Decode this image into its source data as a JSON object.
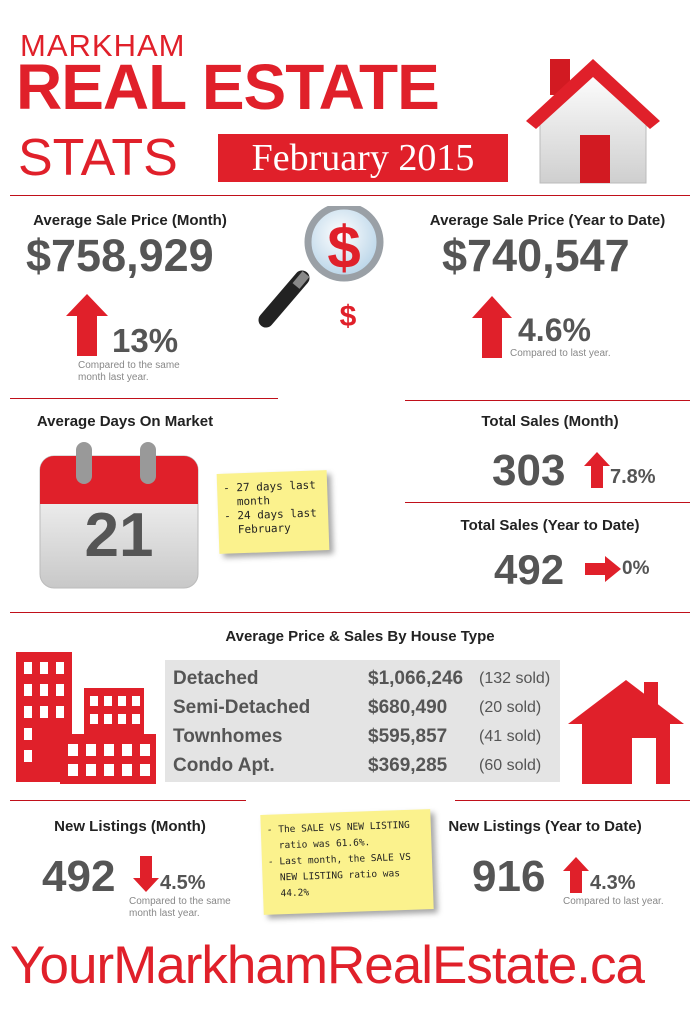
{
  "header": {
    "city": "MARKHAM",
    "title": "REAL ESTATE",
    "stats": "STATS",
    "date": "February 2015"
  },
  "avg_price_month": {
    "label": "Average Sale Price (Month)",
    "value": "$758,929",
    "change": "13%",
    "direction": "up",
    "compare": [
      "Compared to the same",
      "month last year."
    ]
  },
  "avg_price_ytd": {
    "label": "Average Sale Price (Year to Date)",
    "value": "$740,547",
    "change": "4.6%",
    "direction": "up",
    "compare": "Compared to last year."
  },
  "days_on_market": {
    "label": "Average Days On Market",
    "value": "21",
    "note": [
      "- 27 days last",
      "  month",
      "- 24 days last",
      "  February"
    ]
  },
  "total_sales_month": {
    "label": "Total Sales (Month)",
    "value": "303",
    "change": "7.8%",
    "direction": "up"
  },
  "total_sales_ytd": {
    "label": "Total Sales (Year to Date)",
    "value": "492",
    "change": "0%",
    "direction": "flat"
  },
  "house_type": {
    "label": "Average Price & Sales By House Type",
    "rows": [
      {
        "type": "Detached",
        "price": "$1,066,246",
        "sold": "(132 sold)"
      },
      {
        "type": "Semi-Detached",
        "price": "$680,490",
        "sold": "(20 sold)"
      },
      {
        "type": "Townhomes",
        "price": "$595,857",
        "sold": "(41 sold)"
      },
      {
        "type": "Condo Apt.",
        "price": "$369,285",
        "sold": "(60 sold)"
      }
    ]
  },
  "new_listings_month": {
    "label": "New Listings (Month)",
    "value": "492",
    "change": "4.5%",
    "direction": "down",
    "compare": [
      "Compared to the same",
      "month last year."
    ]
  },
  "listing_note": [
    "- The SALE VS NEW LISTING",
    "  ratio was 61.6%.",
    "- Last month, the SALE VS",
    "  NEW LISTING ratio was",
    "  44.2%"
  ],
  "new_listings_ytd": {
    "label": "New Listings (Year to Date)",
    "value": "916",
    "change": "4.3%",
    "direction": "up",
    "compare": "Compared to last year."
  },
  "footer": "YourMarkhamRealEstate.ca",
  "colors": {
    "accent": "#e0202a",
    "text": "#555555",
    "note": "#fbf28d",
    "table": "#e4e4e4"
  },
  "icons": [
    "house-icon",
    "magnifier-dollar-icon",
    "calendar-icon",
    "buildings-icon",
    "arrow-up-icon",
    "arrow-down-icon",
    "arrow-right-icon"
  ]
}
